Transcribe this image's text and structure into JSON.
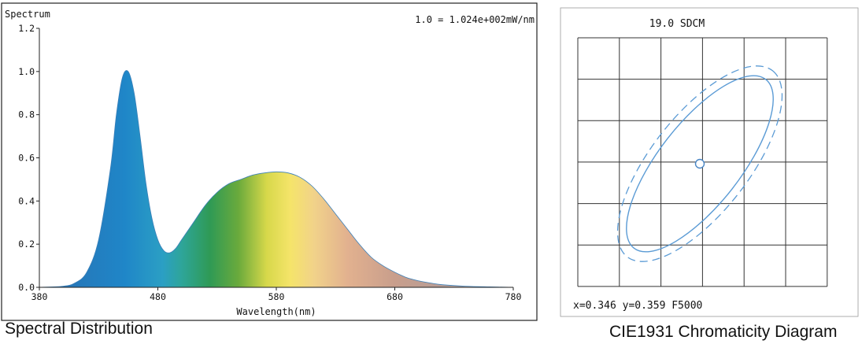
{
  "left_panel": {
    "chart_data": {
      "type": "area",
      "title": "Spectrum",
      "annotation": "1.0 = 1.024e+002mW/nm",
      "xlabel": "Wavelength(nm)",
      "ylabel": "",
      "xlim": [
        380,
        780
      ],
      "ylim": [
        0,
        1.2
      ],
      "x_ticks": [
        "380",
        "480",
        "580",
        "680",
        "780"
      ],
      "y_ticks": [
        "0.0",
        "0.2",
        "0.4",
        "0.6",
        "0.8",
        "1.0",
        "1.2"
      ],
      "x": [
        380,
        400,
        410,
        420,
        430,
        440,
        445,
        450,
        455,
        460,
        465,
        470,
        475,
        480,
        485,
        490,
        495,
        500,
        510,
        520,
        530,
        540,
        550,
        560,
        570,
        580,
        590,
        600,
        610,
        620,
        630,
        640,
        650,
        660,
        670,
        680,
        690,
        700,
        710,
        720,
        740,
        760,
        780
      ],
      "values": [
        0.0,
        0.005,
        0.02,
        0.07,
        0.22,
        0.55,
        0.8,
        0.97,
        1.0,
        0.9,
        0.7,
        0.48,
        0.32,
        0.22,
        0.17,
        0.16,
        0.18,
        0.22,
        0.3,
        0.38,
        0.44,
        0.48,
        0.5,
        0.52,
        0.53,
        0.535,
        0.53,
        0.51,
        0.47,
        0.41,
        0.34,
        0.27,
        0.2,
        0.14,
        0.1,
        0.07,
        0.045,
        0.03,
        0.02,
        0.012,
        0.005,
        0.002,
        0.0
      ],
      "grid": false
    },
    "caption": "Spectral Distribution"
  },
  "right_panel": {
    "title": "19.0 SDCM",
    "readout": "x=0.346 y=0.359 F5000",
    "caption": "CIE1931 Chromaticity Diagram",
    "grid_color": "#333333",
    "ellipse_color": "#5b9bd5",
    "grid": true
  },
  "colors": {
    "axis": "#222222",
    "frame": "#222222"
  }
}
